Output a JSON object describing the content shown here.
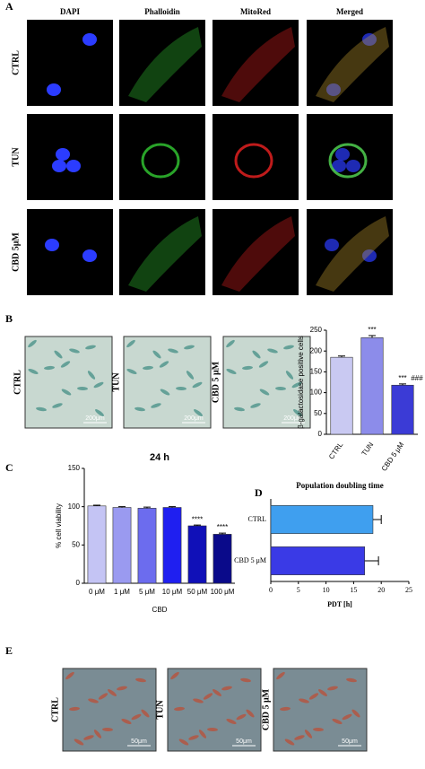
{
  "panels": {
    "A": {
      "label": "A",
      "columns": [
        "DAPI",
        "Phalloidin",
        "MitoRed",
        "Merged"
      ],
      "rows": [
        "CTRL",
        "TUN",
        "CBD 5μM"
      ]
    },
    "B": {
      "label": "B",
      "images": [
        "CTRL",
        "TUN",
        "CBD 5 μM"
      ],
      "scale_bars": [
        "200μm",
        "200μm",
        "200μm"
      ]
    },
    "C": {
      "label": "C"
    },
    "D": {
      "label": "D"
    },
    "E": {
      "label": "E",
      "images": [
        "CTRL",
        "TUN",
        "CBD 5 μM"
      ],
      "scale_bars": [
        "50μm",
        "50μm",
        "50μm"
      ]
    }
  },
  "chart_data": [
    {
      "type": "bar",
      "ylabel": "β-galactosidase positive cells",
      "categories": [
        "CTRL",
        "TUN",
        "CBD 5 μM"
      ],
      "values": [
        185,
        232,
        118
      ],
      "errors": [
        3,
        5,
        3
      ],
      "colors": [
        "#c9c9f2",
        "#8c8cea",
        "#3b3bd6"
      ],
      "ylim": [
        0,
        250
      ],
      "yticks": [
        0,
        50,
        100,
        150,
        200,
        250
      ],
      "annotations": [
        {
          "category": "TUN",
          "text": "***"
        },
        {
          "category": "CBD 5 μM",
          "text": "***"
        },
        {
          "category": "CBD 5 μM",
          "text": "###"
        }
      ]
    },
    {
      "type": "bar",
      "title": "24 h",
      "ylabel": "% cell viability",
      "xlabel": "CBD",
      "categories": [
        "0 μM",
        "1 μM",
        "5 μM",
        "10 μM",
        "50 μM",
        "100 μM"
      ],
      "values": [
        101,
        99,
        98,
        99,
        75,
        64
      ],
      "errors": [
        1,
        1,
        1.5,
        1,
        1,
        1.5
      ],
      "colors": [
        "#c4c4f4",
        "#9a9af0",
        "#6c6cee",
        "#1f1ff0",
        "#1010b8",
        "#0a0a8a"
      ],
      "ylim": [
        0,
        150
      ],
      "yticks": [
        0,
        50,
        100,
        150
      ],
      "annotations": [
        {
          "category": "50 μM",
          "text": "****"
        },
        {
          "category": "100 μM",
          "text": "****"
        }
      ]
    },
    {
      "type": "barh",
      "title": "Population doubling time",
      "xlabel": "PDT [h]",
      "categories": [
        "CTRL",
        "CBD 5 μM"
      ],
      "values": [
        18.5,
        17
      ],
      "errors": [
        1.5,
        2.5
      ],
      "colors": [
        "#3f9fef",
        "#3a3ae6"
      ],
      "xlim": [
        0,
        25
      ],
      "xticks": [
        0,
        5,
        10,
        15,
        20,
        25
      ]
    }
  ]
}
